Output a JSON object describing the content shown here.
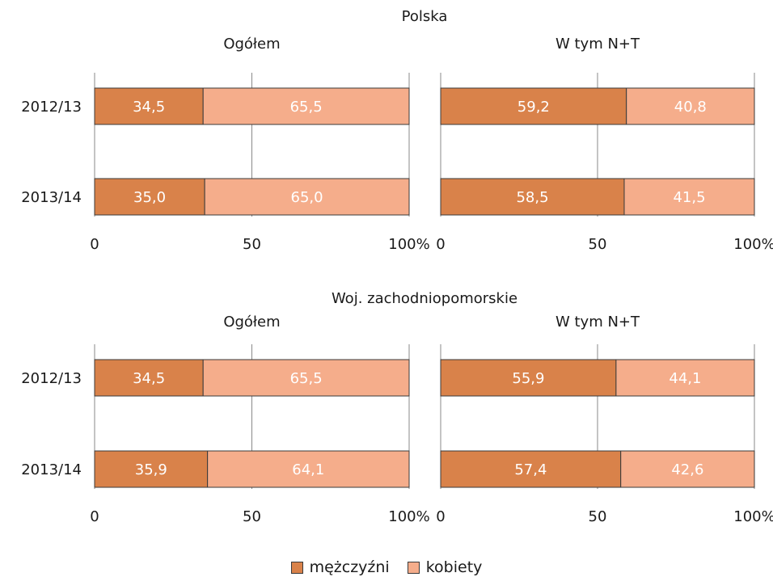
{
  "colors": {
    "men": "#d9824a",
    "women": "#f5ad8b",
    "grid": "#8a8a8a",
    "border": "#3a3a3a",
    "text": "#1a1a1a",
    "label_on_bar": "#ffffff"
  },
  "legend": [
    {
      "name": "mężczyźni",
      "color": "#d9824a"
    },
    {
      "name": "kobiety",
      "color": "#f5ad8b"
    }
  ],
  "chart_data": [
    {
      "type": "bar",
      "orientation": "horizontal",
      "stacked": "percent",
      "group_title": "Polska",
      "title": "Ogółem",
      "categories": [
        "2012/13",
        "2013/14"
      ],
      "series": [
        {
          "name": "mężczyźni",
          "values": [
            34.5,
            35.0
          ],
          "labels": [
            "34,5",
            "35,0"
          ]
        },
        {
          "name": "kobiety",
          "values": [
            65.5,
            65.0
          ],
          "labels": [
            "65,5",
            "65,0"
          ]
        }
      ],
      "xlim": [
        0,
        100
      ],
      "xticks": [
        "0",
        "50",
        "100%"
      ],
      "grid": true
    },
    {
      "type": "bar",
      "orientation": "horizontal",
      "stacked": "percent",
      "group_title": "Polska",
      "title": "W tym N+T",
      "categories": [
        "2012/13",
        "2013/14"
      ],
      "series": [
        {
          "name": "mężczyźni",
          "values": [
            59.2,
            58.5
          ],
          "labels": [
            "59,2",
            "58,5"
          ]
        },
        {
          "name": "kobiety",
          "values": [
            40.8,
            41.5
          ],
          "labels": [
            "40,8",
            "41,5"
          ]
        }
      ],
      "xlim": [
        0,
        100
      ],
      "xticks": [
        "0",
        "50",
        "100%"
      ],
      "grid": true
    },
    {
      "type": "bar",
      "orientation": "horizontal",
      "stacked": "percent",
      "group_title": "Woj. zachodniopomorskie",
      "title": "Ogółem",
      "categories": [
        "2012/13",
        "2013/14"
      ],
      "series": [
        {
          "name": "mężczyźni",
          "values": [
            34.5,
            35.9
          ],
          "labels": [
            "34,5",
            "35,9"
          ]
        },
        {
          "name": "kobiety",
          "values": [
            65.5,
            64.1
          ],
          "labels": [
            "65,5",
            "64,1"
          ]
        }
      ],
      "xlim": [
        0,
        100
      ],
      "xticks": [
        "0",
        "50",
        "100%"
      ],
      "grid": true
    },
    {
      "type": "bar",
      "orientation": "horizontal",
      "stacked": "percent",
      "group_title": "Woj. zachodniopomorskie",
      "title": "W tym N+T",
      "categories": [
        "2012/13",
        "2013/14"
      ],
      "series": [
        {
          "name": "mężczyźni",
          "values": [
            55.9,
            57.4
          ],
          "labels": [
            "55,9",
            "57,4"
          ]
        },
        {
          "name": "kobiety",
          "values": [
            44.1,
            42.6
          ],
          "labels": [
            "44,1",
            "42,6"
          ]
        }
      ],
      "xlim": [
        0,
        100
      ],
      "xticks": [
        "0",
        "50",
        "100%"
      ],
      "grid": true
    }
  ]
}
